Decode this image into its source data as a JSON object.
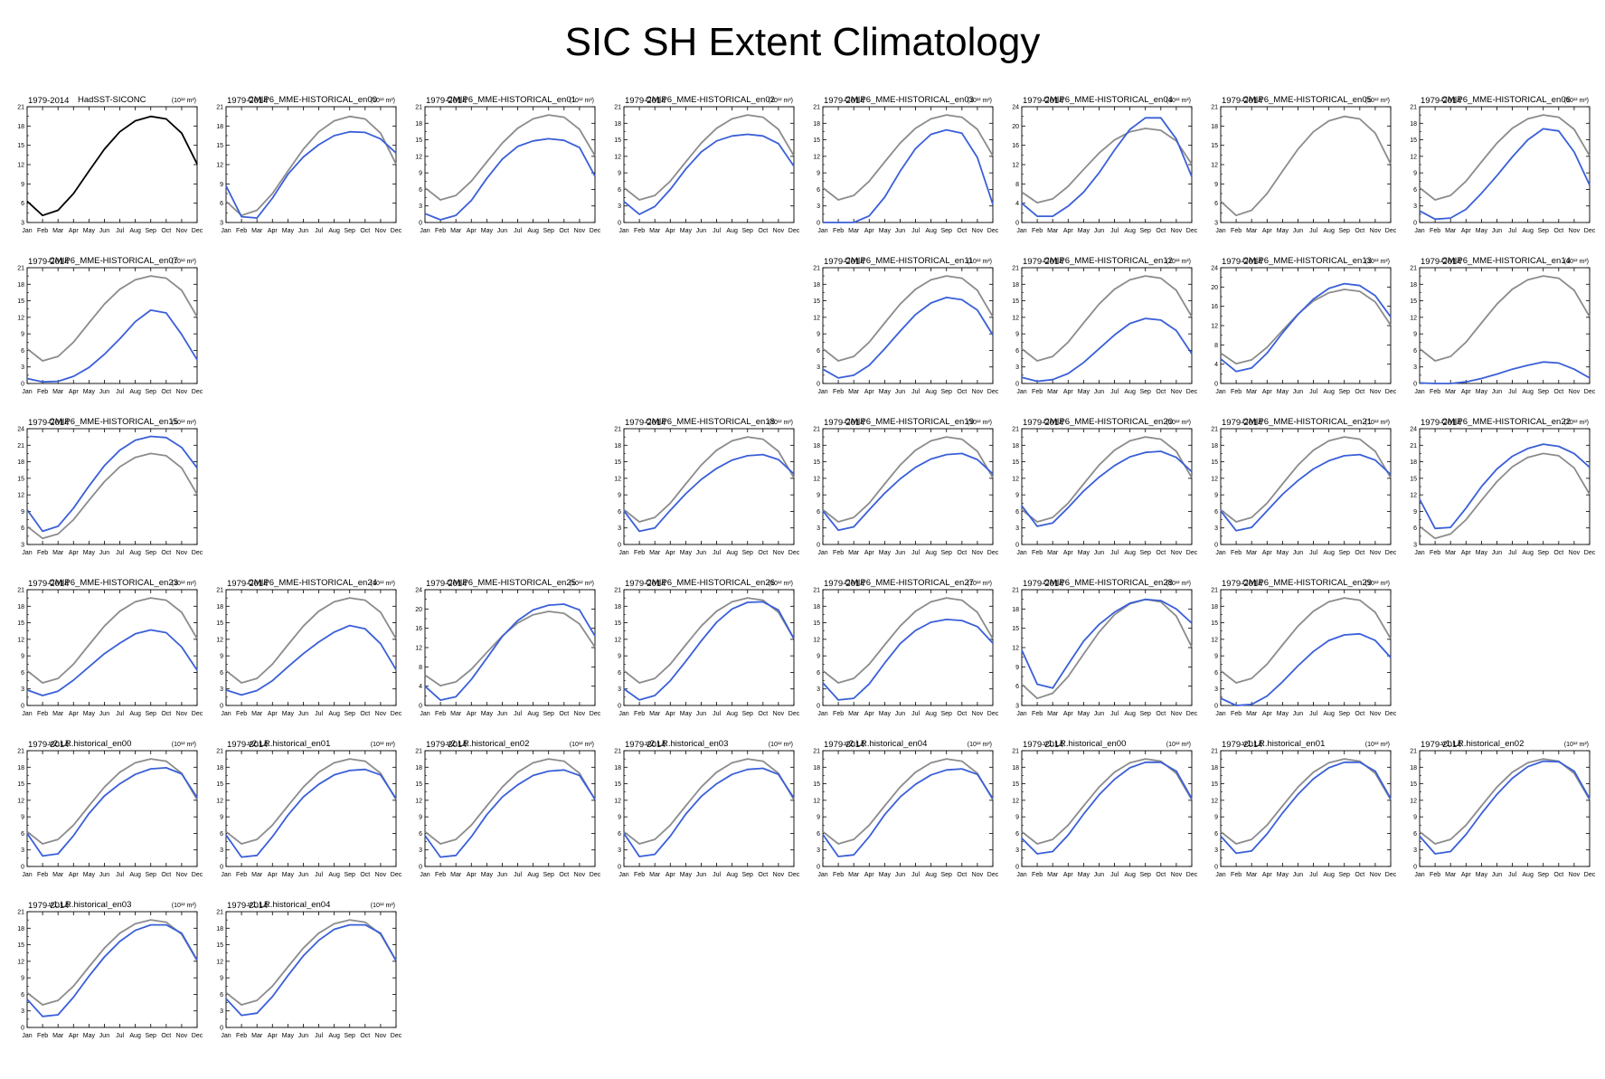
{
  "title": "SIC SH Extent Climatology",
  "colors": {
    "observation": "#000000",
    "reference": "#8c8c8c",
    "model": "#3a5fd8"
  },
  "chart_data": {
    "type": "line",
    "categories": [
      "Jan",
      "Feb",
      "Mar",
      "Apr",
      "May",
      "Jun",
      "Jul",
      "Aug",
      "Sep",
      "Oct",
      "Nov",
      "Dec"
    ],
    "units_label": "(10¹² m²)",
    "reference_series": {
      "name": "HadSST-SICONC",
      "values": [
        6.3,
        4.1,
        4.9,
        7.5,
        11,
        14.4,
        17.1,
        18.8,
        19.5,
        19.1,
        16.9,
        12.1
      ]
    },
    "panels": [
      {
        "period": "1979-2014",
        "name": "HadSST-SICONC",
        "ylim": [
          3,
          21
        ],
        "yticks": [
          3,
          6,
          9,
          12,
          15,
          18,
          21
        ],
        "values": [
          6.3,
          4.1,
          4.9,
          7.5,
          11,
          14.4,
          17.1,
          18.8,
          19.5,
          19.1,
          16.9,
          12.1
        ]
      },
      {
        "period": "1979-2014",
        "name": "CMIP6_MME-HISTORICAL_en00",
        "ylim": [
          3,
          21
        ],
        "yticks": [
          3,
          6,
          9,
          12,
          15,
          18,
          21
        ],
        "values": [
          8.7,
          3.9,
          3.7,
          6.8,
          10.5,
          13.2,
          15.1,
          16.5,
          17.1,
          17,
          16,
          13.8
        ]
      },
      {
        "period": "1979-2014",
        "name": "CMIP6_MME-HISTORICAL_en01",
        "ylim": [
          0,
          21
        ],
        "yticks": [
          0,
          3,
          6,
          9,
          12,
          15,
          18,
          21
        ],
        "values": [
          1.6,
          0.5,
          1.3,
          4,
          8,
          11.5,
          13.8,
          14.8,
          15.2,
          14.9,
          13.6,
          8.4
        ]
      },
      {
        "period": "1979-2014",
        "name": "CMIP6_MME-HISTORICAL_en02",
        "ylim": [
          0,
          21
        ],
        "yticks": [
          0,
          3,
          6,
          9,
          12,
          15,
          18,
          21
        ],
        "values": [
          3.8,
          1.5,
          2.9,
          6,
          9.7,
          12.8,
          14.8,
          15.7,
          16,
          15.7,
          14.3,
          10.2
        ]
      },
      {
        "period": "1979-2014",
        "name": "CMIP6_MME-HISTORICAL_en03",
        "ylim": [
          0,
          21
        ],
        "yticks": [
          0,
          3,
          6,
          9,
          12,
          15,
          18,
          21
        ],
        "values": [
          0,
          0,
          0,
          1.2,
          4.6,
          9.3,
          13.4,
          16,
          16.8,
          16.2,
          11.8,
          3.3
        ]
      },
      {
        "period": "1979-2014",
        "name": "CMIP6_MME-HISTORICAL_en04",
        "ylim": [
          0,
          24
        ],
        "yticks": [
          0,
          4,
          8,
          12,
          16,
          20,
          24
        ],
        "values": [
          4,
          1.3,
          1.3,
          3.4,
          6.3,
          10.3,
          15,
          19.3,
          21.7,
          21.7,
          17.3,
          9.5
        ]
      },
      {
        "period": "1979-2014",
        "name": "CMIP6_MME-HISTORICAL_en05",
        "ylim": [
          3,
          21
        ],
        "yticks": [
          3,
          6,
          9,
          12,
          15,
          18,
          21
        ],
        "values": []
      },
      {
        "period": "1979-2014",
        "name": "CMIP6_MME-HISTORICAL_en06",
        "ylim": [
          0,
          21
        ],
        "yticks": [
          0,
          3,
          6,
          9,
          12,
          15,
          18,
          21
        ],
        "values": [
          2.1,
          0.6,
          0.8,
          2.4,
          5.3,
          8.5,
          11.9,
          15,
          17,
          16.6,
          12.8,
          6.8
        ]
      },
      {
        "period": "1979-2014",
        "name": "CMIP6_MME-HISTORICAL_en07",
        "ylim": [
          0,
          21
        ],
        "yticks": [
          0,
          3,
          6,
          9,
          12,
          15,
          18,
          21
        ],
        "values": [
          0.9,
          0.3,
          0.4,
          1.3,
          2.9,
          5.3,
          8.1,
          11.2,
          13.3,
          12.8,
          8.9,
          4.3
        ]
      },
      {
        "period": "1979-2014",
        "name": "CMIP6_MME-HISTORICAL_en11",
        "ylim": [
          0,
          21
        ],
        "yticks": [
          0,
          3,
          6,
          9,
          12,
          15,
          18,
          21
        ],
        "values": [
          2.6,
          1,
          1.5,
          3.3,
          6.3,
          9.5,
          12.5,
          14.6,
          15.6,
          15.2,
          13.3,
          8.8
        ]
      },
      {
        "period": "1979-2014",
        "name": "CMIP6_MME-HISTORICAL_en12",
        "ylim": [
          0,
          21
        ],
        "yticks": [
          0,
          3,
          6,
          9,
          12,
          15,
          18,
          21
        ],
        "values": [
          1.1,
          0.4,
          0.7,
          1.8,
          3.8,
          6.3,
          8.8,
          10.9,
          11.8,
          11.5,
          9.6,
          5.4
        ]
      },
      {
        "period": "1979-2014",
        "name": "CMIP6_MME-HISTORICAL_en13",
        "ylim": [
          0,
          24
        ],
        "yticks": [
          0,
          4,
          8,
          12,
          16,
          20,
          24
        ],
        "values": [
          5.1,
          2.5,
          3.2,
          6.3,
          10.5,
          14.3,
          17.5,
          19.7,
          20.7,
          20.3,
          18.2,
          13.8
        ]
      },
      {
        "period": "1979-2014",
        "name": "CMIP6_MME-HISTORICAL_en14",
        "ylim": [
          0,
          21
        ],
        "yticks": [
          0,
          3,
          6,
          9,
          12,
          15,
          18,
          21
        ],
        "values": [
          0.1,
          0,
          0,
          0.3,
          0.9,
          1.7,
          2.6,
          3.3,
          3.9,
          3.7,
          2.6,
          1
        ]
      },
      {
        "period": "1979-2014",
        "name": "CMIP6_MME-HISTORICAL_en15",
        "ylim": [
          3,
          24
        ],
        "yticks": [
          3,
          6,
          9,
          12,
          15,
          18,
          21,
          24
        ],
        "values": [
          9.3,
          5.4,
          6.3,
          9.6,
          13.6,
          17.3,
          20.1,
          21.9,
          22.6,
          22.4,
          20.6,
          16.9
        ]
      },
      {
        "period": "1979-2014",
        "name": "CMIP6_MME-HISTORICAL_en18",
        "ylim": [
          0,
          21
        ],
        "yticks": [
          0,
          3,
          6,
          9,
          12,
          15,
          18,
          21
        ],
        "values": [
          6.1,
          2.4,
          3,
          6.2,
          9.2,
          11.8,
          13.8,
          15.3,
          16.1,
          16.3,
          15.4,
          12.8
        ]
      },
      {
        "period": "1979-2014",
        "name": "CMIP6_MME-HISTORICAL_en19",
        "ylim": [
          0,
          21
        ],
        "yticks": [
          0,
          3,
          6,
          9,
          12,
          15,
          18,
          21
        ],
        "values": [
          6.1,
          2.6,
          3.2,
          6.3,
          9.3,
          11.9,
          14,
          15.5,
          16.3,
          16.5,
          15.4,
          12.8
        ]
      },
      {
        "period": "1979-2014",
        "name": "CMIP6_MME-HISTORICAL_en20",
        "ylim": [
          0,
          21
        ],
        "yticks": [
          0,
          3,
          6,
          9,
          12,
          15,
          18,
          21
        ],
        "values": [
          7,
          3.3,
          3.9,
          6.7,
          9.7,
          12.2,
          14.3,
          15.9,
          16.7,
          16.9,
          15.8,
          13.2
        ]
      },
      {
        "period": "1979-2014",
        "name": "CMIP6_MME-HISTORICAL_en21",
        "ylim": [
          0,
          21
        ],
        "yticks": [
          0,
          3,
          6,
          9,
          12,
          15,
          18,
          21
        ],
        "values": [
          6.1,
          2.5,
          3.1,
          6.1,
          9.1,
          11.6,
          13.7,
          15.2,
          16.1,
          16.3,
          15.3,
          12.7
        ]
      },
      {
        "period": "1979-2014",
        "name": "CMIP6_MME-HISTORICAL_en22",
        "ylim": [
          3,
          24
        ],
        "yticks": [
          3,
          6,
          9,
          12,
          15,
          18,
          21,
          24
        ],
        "values": [
          11.2,
          5.9,
          6.1,
          9.6,
          13.5,
          16.7,
          19,
          20.4,
          21.2,
          20.8,
          19.5,
          17
        ]
      },
      {
        "period": "1979-2014",
        "name": "CMIP6_MME-HISTORICAL_en23",
        "ylim": [
          0,
          21
        ],
        "yticks": [
          0,
          3,
          6,
          9,
          12,
          15,
          18,
          21
        ],
        "values": [
          2.8,
          1.8,
          2.6,
          4.6,
          7,
          9.4,
          11.3,
          13,
          13.7,
          13.2,
          10.6,
          6.4
        ]
      },
      {
        "period": "1979-2014",
        "name": "CMIP6_MME-HISTORICAL_en24",
        "ylim": [
          0,
          21
        ],
        "yticks": [
          0,
          3,
          6,
          9,
          12,
          15,
          18,
          21
        ],
        "values": [
          2.8,
          1.9,
          2.7,
          4.5,
          7,
          9.4,
          11.5,
          13.3,
          14.5,
          13.9,
          11.2,
          6.5
        ]
      },
      {
        "period": "1979-2014",
        "name": "CMIP6_MME-HISTORICAL_en25",
        "ylim": [
          0,
          24
        ],
        "yticks": [
          0,
          4,
          8,
          12,
          16,
          20,
          24
        ],
        "values": [
          4,
          1.1,
          1.8,
          5.4,
          9.8,
          14.3,
          17.6,
          19.8,
          20.8,
          21,
          19.8,
          14.4
        ]
      },
      {
        "period": "1979-2014",
        "name": "CMIP6_MME-HISTORICAL_en26",
        "ylim": [
          0,
          21
        ],
        "yticks": [
          0,
          3,
          6,
          9,
          12,
          15,
          18,
          21
        ],
        "values": [
          3,
          1,
          1.8,
          4.5,
          8,
          11.7,
          15.1,
          17.5,
          18.7,
          18.8,
          17.3,
          12.1
        ]
      },
      {
        "period": "1979-2014",
        "name": "CMIP6_MME-HISTORICAL_en27",
        "ylim": [
          0,
          21
        ],
        "yticks": [
          0,
          3,
          6,
          9,
          12,
          15,
          18,
          21
        ],
        "values": [
          4.1,
          1,
          1.3,
          3.9,
          7.7,
          11.2,
          13.6,
          15.1,
          15.6,
          15.4,
          14.3,
          11.3
        ]
      },
      {
        "period": "1979-2014",
        "name": "CMIP6_MME-HISTORICAL_en28",
        "ylim": [
          3,
          21
        ],
        "yticks": [
          3,
          6,
          9,
          12,
          15,
          18,
          21
        ],
        "values": [
          11.6,
          6.3,
          5.7,
          9.4,
          13,
          15.6,
          17.5,
          18.9,
          19.5,
          19.3,
          18,
          15.8
        ]
      },
      {
        "period": "1979-2014",
        "name": "CMIP6_MME-HISTORICAL_en29",
        "ylim": [
          0,
          21
        ],
        "yticks": [
          0,
          3,
          6,
          9,
          12,
          15,
          18,
          21
        ],
        "values": [
          1.3,
          0,
          0.2,
          1.7,
          4.3,
          7.2,
          9.8,
          11.8,
          12.8,
          13,
          11.8,
          8.7
        ]
      },
      {
        "period": "1979-2014",
        "name": "v2.LR.historical_en00",
        "ylim": [
          0,
          21
        ],
        "yticks": [
          0,
          3,
          6,
          9,
          12,
          15,
          18,
          21
        ],
        "values": [
          6,
          1.9,
          2.3,
          5.6,
          9.6,
          12.8,
          15,
          16.7,
          17.7,
          17.9,
          16.8,
          12.5
        ]
      },
      {
        "period": "1979-2014",
        "name": "v2.LR.historical_en01",
        "ylim": [
          0,
          21
        ],
        "yticks": [
          0,
          3,
          6,
          9,
          12,
          15,
          18,
          21
        ],
        "values": [
          5.7,
          1.7,
          2,
          5.4,
          9.3,
          12.6,
          14.9,
          16.6,
          17.4,
          17.6,
          16.6,
          12.3
        ]
      },
      {
        "period": "1979-2014",
        "name": "v2.LR.historical_en02",
        "ylim": [
          0,
          21
        ],
        "yticks": [
          0,
          3,
          6,
          9,
          12,
          15,
          18,
          21
        ],
        "values": [
          5.6,
          1.7,
          2,
          5.4,
          9.4,
          12.6,
          14.8,
          16.5,
          17.3,
          17.5,
          16.5,
          12.2
        ]
      },
      {
        "period": "1979-2014",
        "name": "v2.LR.historical_en03",
        "ylim": [
          0,
          21
        ],
        "yticks": [
          0,
          3,
          6,
          9,
          12,
          15,
          18,
          21
        ],
        "values": [
          6,
          1.8,
          2.2,
          5.5,
          9.5,
          12.7,
          15,
          16.7,
          17.6,
          17.8,
          16.7,
          12.4
        ]
      },
      {
        "period": "1979-2014",
        "name": "v2.LR.historical_en04",
        "ylim": [
          0,
          21
        ],
        "yticks": [
          0,
          3,
          6,
          9,
          12,
          15,
          18,
          21
        ],
        "values": [
          5.8,
          1.8,
          2.1,
          5.4,
          9.4,
          12.6,
          14.9,
          16.6,
          17.5,
          17.7,
          16.7,
          12.3
        ]
      },
      {
        "period": "1979-2014",
        "name": "v1.LR.historical_en00",
        "ylim": [
          0,
          21
        ],
        "yticks": [
          0,
          3,
          6,
          9,
          12,
          15,
          18,
          21
        ],
        "values": [
          5.1,
          2.3,
          2.7,
          5.7,
          9.5,
          13,
          15.8,
          17.9,
          18.9,
          18.9,
          17.3,
          12.3
        ]
      },
      {
        "period": "1979-2014",
        "name": "v1.LR.historical_en01",
        "ylim": [
          0,
          21
        ],
        "yticks": [
          0,
          3,
          6,
          9,
          12,
          15,
          18,
          21
        ],
        "values": [
          5.5,
          2.4,
          2.8,
          5.9,
          9.7,
          13.1,
          15.9,
          17.9,
          18.9,
          18.9,
          17.3,
          12.3
        ]
      },
      {
        "period": "1979-2014",
        "name": "v1.LR.historical_en02",
        "ylim": [
          0,
          21
        ],
        "yticks": [
          0,
          3,
          6,
          9,
          12,
          15,
          18,
          21
        ],
        "values": [
          5.5,
          2.3,
          2.7,
          5.8,
          9.6,
          13.1,
          16,
          18.1,
          19.1,
          19,
          17.3,
          12.3
        ]
      },
      {
        "period": "1979-2014",
        "name": "v1.LR.historical_en03",
        "ylim": [
          0,
          21
        ],
        "yticks": [
          0,
          3,
          6,
          9,
          12,
          15,
          18,
          21
        ],
        "values": [
          5.1,
          2,
          2.3,
          5.5,
          9.3,
          12.8,
          15.6,
          17.6,
          18.6,
          18.6,
          17.1,
          12.2
        ]
      },
      {
        "period": "1979-2014",
        "name": "v1.LR.historical_en04",
        "ylim": [
          0,
          21
        ],
        "yticks": [
          0,
          3,
          6,
          9,
          12,
          15,
          18,
          21
        ],
        "values": [
          5.2,
          2.2,
          2.6,
          5.6,
          9.4,
          13,
          15.8,
          17.8,
          18.6,
          18.6,
          17.1,
          12.1
        ]
      }
    ]
  }
}
